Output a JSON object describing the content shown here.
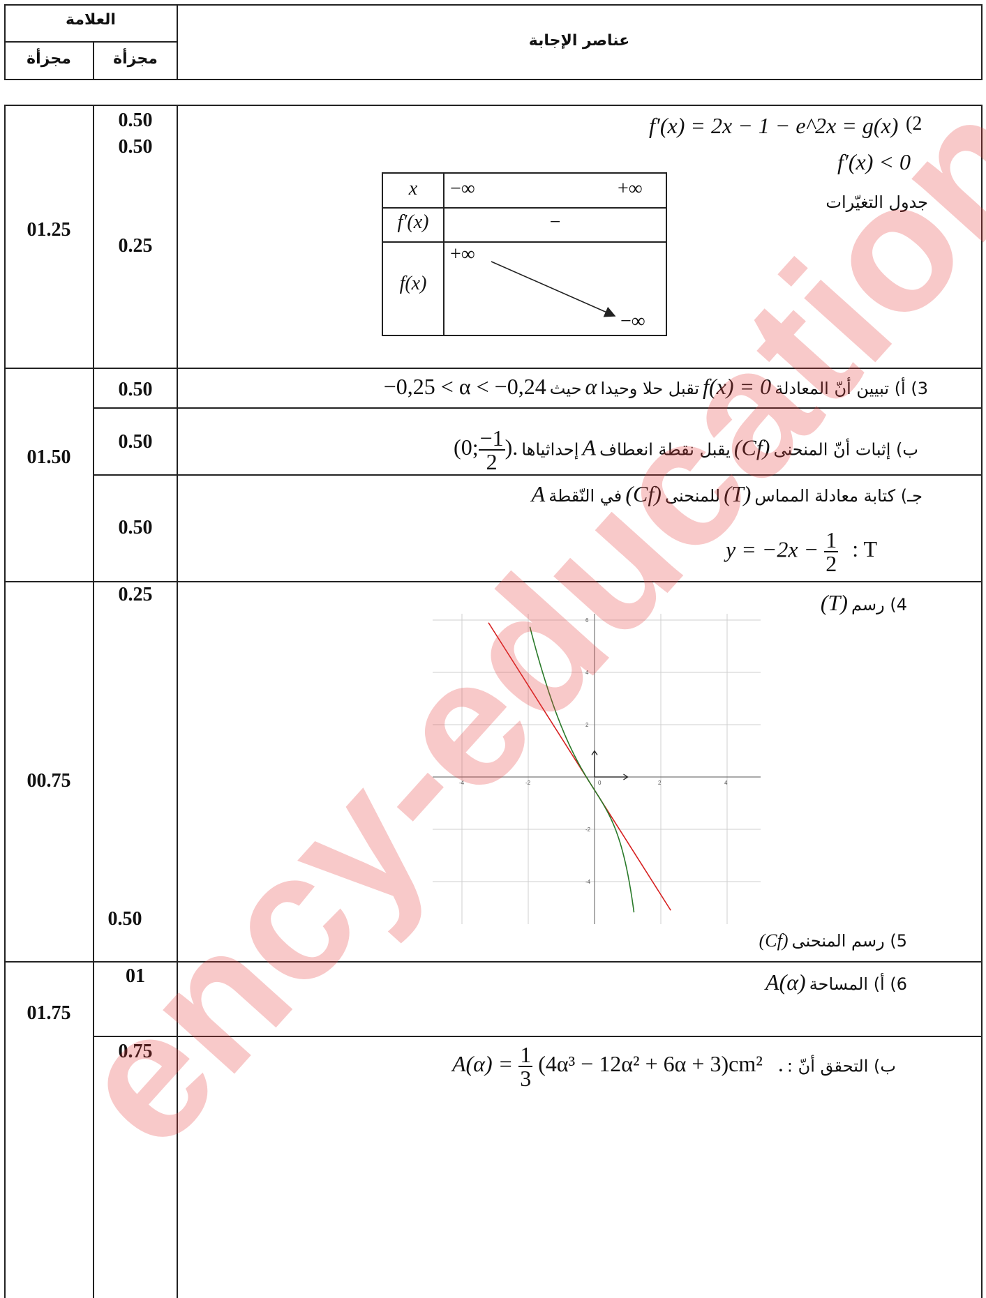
{
  "header": {
    "grade_title": "العلامة",
    "sub_col_1": "مجزأة",
    "sub_col_2": "مجزأة",
    "answer_title": "عناصر الإجابة"
  },
  "rows": {
    "q2": {
      "total": "01.25",
      "marks": [
        "0.50",
        "0.50",
        "0.25"
      ],
      "line1": "f′(x) = 2x − 1 − e^2x = g(x)",
      "number": "(2",
      "line2": "f′(x) < 0",
      "table_label": "جدول التغيّرات",
      "vt": {
        "x_label": "x",
        "x_left": "−∞",
        "x_right": "+∞",
        "fp_label": "f′(x)",
        "fp_sign": "−",
        "f_label": "f(x)",
        "f_top": "+∞",
        "f_bottom": "−∞"
      }
    },
    "q3": {
      "total": "01.50",
      "a_mark": "0.50",
      "a_text": "3) أ) تبيين أنّ المعادلة",
      "a_math": "f(x) = 0",
      "a_text2": "تقبل حلا وحيدا",
      "a_alpha": "α",
      "a_text3": "حيث",
      "a_ineq": "−0,25 < α < −0,24",
      "b_mark": "0.50",
      "b_text": "ب) إثبات أنّ المنحنى",
      "b_cf": "(Cf)",
      "b_text2": "يقبل نقطة انعطاف",
      "b_A": "A",
      "b_text3": "إحداثياها",
      "b_coord_pre": "(0;",
      "b_num": "−1",
      "b_den": "2",
      "b_coord_post": ").",
      "c_mark": "0.50",
      "c_text": "جـ) كتابة معادلة المماس",
      "c_T": "(T)",
      "c_text2": "للمنحنى",
      "c_cf": "(Cf)",
      "c_text3": "في النّقطة",
      "c_A": "A",
      "c_eq_pre": "y = −2x −",
      "c_num": "1",
      "c_den": "2",
      "c_eq_T": ":  T"
    },
    "q4": {
      "total": "00.75",
      "mark_4": "0.25",
      "mark_5": "0.50",
      "text_4": "4) رسم",
      "text_4_T": "(T)",
      "text_5": "5) رسم المنحنى",
      "text_5_cf": "(Cf)",
      "graph": {
        "x_ticks": [
          "-4",
          "-2",
          "0",
          "2",
          "4"
        ],
        "y_ticks": [
          "6",
          "4",
          "2",
          "-2",
          "-4"
        ],
        "tangent_color": "#d62020",
        "curve_color": "#2a7a2a"
      }
    },
    "q6": {
      "total": "01.75",
      "a_mark": "01",
      "a_text": "6) أ) المساحة",
      "a_math": "A(α)",
      "b_mark": "0.75",
      "b_text": "ب) التحقق أنّ :",
      "b_lhs": "A(α) =",
      "b_num": "1",
      "b_den": "3",
      "b_rhs": "(4α³ − 12α² + 6α + 3)cm²",
      "b_dot": "."
    }
  },
  "watermark": "ency-education.com"
}
